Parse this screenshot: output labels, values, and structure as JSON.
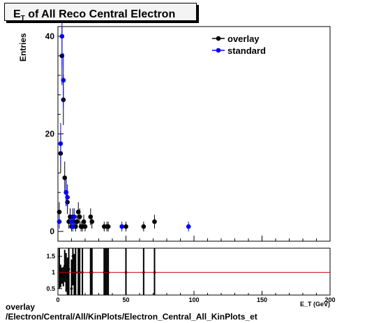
{
  "chart_data": [
    {
      "type": "scatter",
      "title_main": "E",
      "title_sub": "T",
      "title_rest": " of All Reco Central Electron",
      "xlabel": "E_T (GeV)",
      "ylabel": "Entries",
      "xlim": [
        0,
        200
      ],
      "ylim": [
        -2,
        42
      ],
      "x_ticks": [
        0,
        50,
        100,
        150,
        200
      ],
      "y_ticks": [
        0,
        20,
        40
      ],
      "grid": false,
      "legend_position": "top-right",
      "series": [
        {
          "name": "overlay",
          "color": "#000000",
          "points": [
            [
              1,
              4
            ],
            [
              2,
              16
            ],
            [
              3,
              36
            ],
            [
              4,
              27
            ],
            [
              5,
              11
            ],
            [
              6,
              8
            ],
            [
              7,
              6
            ],
            [
              8,
              2
            ],
            [
              9,
              3
            ],
            [
              10,
              1
            ],
            [
              11,
              3
            ],
            [
              12,
              2
            ],
            [
              13,
              1
            ],
            [
              14,
              2
            ],
            [
              15,
              4
            ],
            [
              16,
              3
            ],
            [
              17,
              1
            ],
            [
              18,
              1
            ],
            [
              19,
              2
            ],
            [
              20,
              1
            ],
            [
              24,
              3
            ],
            [
              25,
              2
            ],
            [
              34,
              1
            ],
            [
              36,
              1
            ],
            [
              37,
              1
            ],
            [
              50,
              1
            ],
            [
              63,
              1
            ],
            [
              71,
              2
            ]
          ]
        },
        {
          "name": "standard",
          "color": "#0000ff",
          "points": [
            [
              1,
              2
            ],
            [
              2,
              18
            ],
            [
              3,
              40
            ],
            [
              4,
              31
            ],
            [
              6,
              8
            ],
            [
              7,
              7
            ],
            [
              10,
              2
            ],
            [
              11,
              1
            ],
            [
              12,
              3
            ],
            [
              47,
              1
            ],
            [
              96,
              1
            ]
          ]
        }
      ]
    },
    {
      "type": "scatter",
      "xlim": [
        0,
        200
      ],
      "ylim": [
        0.3,
        1.75
      ],
      "x_ticks": [
        0,
        50,
        100,
        150,
        200
      ],
      "y_ticks": [
        0.5,
        1,
        1.5
      ],
      "reference_line": 1,
      "reference_color": "#cc0000",
      "ratio_points": [
        [
          1,
          2,
          1.5
        ],
        [
          2,
          0.89,
          0.35
        ],
        [
          3,
          0.9,
          0.25
        ],
        [
          4,
          0.87,
          0.3
        ],
        [
          5,
          1.2,
          0.5
        ],
        [
          6,
          1,
          0.6
        ],
        [
          7,
          0.86,
          0.6
        ],
        [
          8,
          1.1,
          0.9
        ],
        [
          10,
          0.5,
          0.9
        ],
        [
          11,
          1.5,
          0.9
        ],
        [
          12,
          0.67,
          0.9
        ],
        [
          13,
          1.0,
          1.2
        ],
        [
          15,
          1.0,
          1.2
        ],
        [
          16,
          1.0,
          1.2
        ],
        [
          18,
          1.0,
          1.2
        ],
        [
          24,
          1.0,
          1.2
        ],
        [
          25,
          1.0,
          1.2
        ],
        [
          34,
          1.0,
          1.2
        ],
        [
          35,
          1.0,
          1.2
        ],
        [
          36,
          1.0,
          1.2
        ],
        [
          37,
          1.0,
          1.2
        ],
        [
          50,
          1.0,
          1.2
        ],
        [
          63,
          1.0,
          1.2
        ],
        [
          71,
          1.0,
          1.2
        ]
      ]
    }
  ],
  "footer": {
    "line1": "overlay",
    "line2": "/Electron/Central/All/KinPlots/Electron_Central_All_KinPlots_et"
  }
}
